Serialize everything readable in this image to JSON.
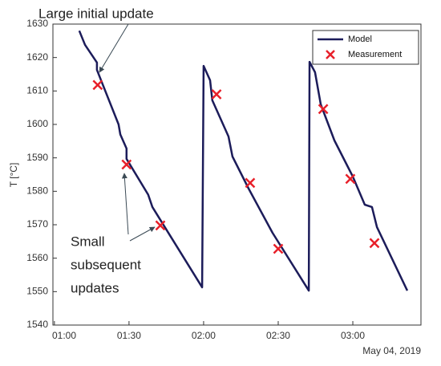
{
  "chart_data": {
    "type": "line",
    "y_label": "T [°C]",
    "x_note": "May 04, 2019",
    "annotations": [
      {
        "text": [
          "Large initial update"
        ]
      },
      {
        "text": [
          "Small",
          "subsequent",
          "updates"
        ]
      }
    ],
    "xlim": [
      59.4,
      207.4
    ],
    "xticks": [
      {
        "value": 60,
        "label": "01:00"
      },
      {
        "value": 90,
        "label": "01:30"
      },
      {
        "value": 120,
        "label": "02:00"
      },
      {
        "value": 150,
        "label": "02:30"
      },
      {
        "value": 180,
        "label": "03:00"
      }
    ],
    "ylim": [
      1540,
      1630
    ],
    "yticks": [
      1540,
      1550,
      1560,
      1570,
      1580,
      1590,
      1600,
      1610,
      1620,
      1630
    ],
    "grid": false,
    "legend": "upper right",
    "series": [
      {
        "name": "Model",
        "color": "#1c1c5a",
        "marker": "none",
        "x": [
          70,
          72.3,
          77.1,
          77.1,
          85.8,
          86.5,
          89,
          89,
          97.7,
          99.4,
          119.4,
          120,
          122.6,
          123.5,
          130,
          131.6,
          138.1,
          147.7,
          162.3,
          162.6,
          164.8,
          167.1,
          172.6,
          180,
          184.8,
          187.7,
          189.7,
          201.9
        ],
        "values": [
          1628,
          1623.8,
          1618.5,
          1616.3,
          1600,
          1597,
          1592.8,
          1589.7,
          1579,
          1575.3,
          1551.3,
          1617.5,
          1613.2,
          1607.2,
          1596.4,
          1590.4,
          1580.8,
          1567.6,
          1550.3,
          1618.7,
          1615.6,
          1606,
          1595.2,
          1584.4,
          1576,
          1575.3,
          1569.3,
          1550.3
        ]
      },
      {
        "name": "Measurement",
        "color": "#e8202a",
        "marker": "x",
        "x": [
          77.4,
          89,
          102.6,
          125.2,
          138.7,
          150,
          168.1,
          179,
          188.7
        ],
        "values": [
          1611.8,
          1588,
          1569.8,
          1609,
          1582.5,
          1562.8,
          1604.6,
          1583.7,
          1564.5
        ]
      }
    ]
  }
}
